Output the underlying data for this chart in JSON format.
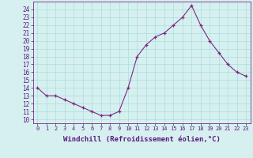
{
  "x": [
    0,
    1,
    2,
    3,
    4,
    5,
    6,
    7,
    8,
    9,
    10,
    11,
    12,
    13,
    14,
    15,
    16,
    17,
    18,
    19,
    20,
    21,
    22,
    23
  ],
  "y": [
    14,
    13,
    13,
    12.5,
    12,
    11.5,
    11,
    10.5,
    10.5,
    11,
    14,
    18,
    19.5,
    20.5,
    21,
    22,
    23,
    24.5,
    22,
    20,
    18.5,
    17,
    16,
    15.5
  ],
  "line_color": "#7b2882",
  "marker": "+",
  "bg_color": "#d6f0f0",
  "grid_color": "#aadddd",
  "xlabel": "Windchill (Refroidissement éolien,°C)",
  "xlabel_fontsize": 6.5,
  "ytick_min": 10,
  "ytick_max": 24,
  "xtick_labels": [
    "0",
    "1",
    "2",
    "3",
    "4",
    "5",
    "6",
    "7",
    "8",
    "9",
    "10",
    "11",
    "12",
    "13",
    "14",
    "15",
    "16",
    "17",
    "18",
    "19",
    "20",
    "21",
    "22",
    "23"
  ],
  "spine_color": "#7b2882"
}
